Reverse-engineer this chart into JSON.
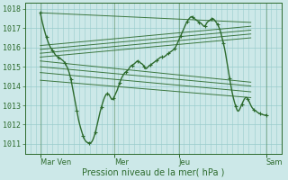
{
  "xlabel": "Pression niveau de la mer( hPa )",
  "ylim": [
    1010.5,
    1018.3
  ],
  "yticks": [
    1011,
    1012,
    1013,
    1014,
    1015,
    1016,
    1017,
    1018
  ],
  "xtick_labels": [
    "Mar Ven",
    "Mer",
    "Jeu",
    "Sam"
  ],
  "xtick_positions": [
    0.06,
    0.35,
    0.6,
    0.94
  ],
  "bg_color": "#cce8e8",
  "grid_color_major": "#99cccc",
  "grid_color_minor": "#b3d9d9",
  "line_color": "#2d6b2d",
  "figsize": [
    3.2,
    2.0
  ],
  "dpi": 100,
  "forecast_starts": [
    [
      0.06,
      1017.8
    ],
    [
      0.06,
      1016.1
    ],
    [
      0.06,
      1015.9
    ],
    [
      0.06,
      1015.7
    ],
    [
      0.06,
      1015.5
    ],
    [
      0.06,
      1015.3
    ],
    [
      0.06,
      1015.0
    ],
    [
      0.06,
      1014.7
    ],
    [
      0.06,
      1014.3
    ]
  ],
  "forecast_ends": [
    [
      0.88,
      1017.3
    ],
    [
      0.88,
      1017.1
    ],
    [
      0.88,
      1016.9
    ],
    [
      0.88,
      1016.7
    ],
    [
      0.88,
      1016.5
    ],
    [
      0.88,
      1014.2
    ],
    [
      0.88,
      1014.0
    ],
    [
      0.88,
      1013.7
    ],
    [
      0.88,
      1013.4
    ]
  ]
}
